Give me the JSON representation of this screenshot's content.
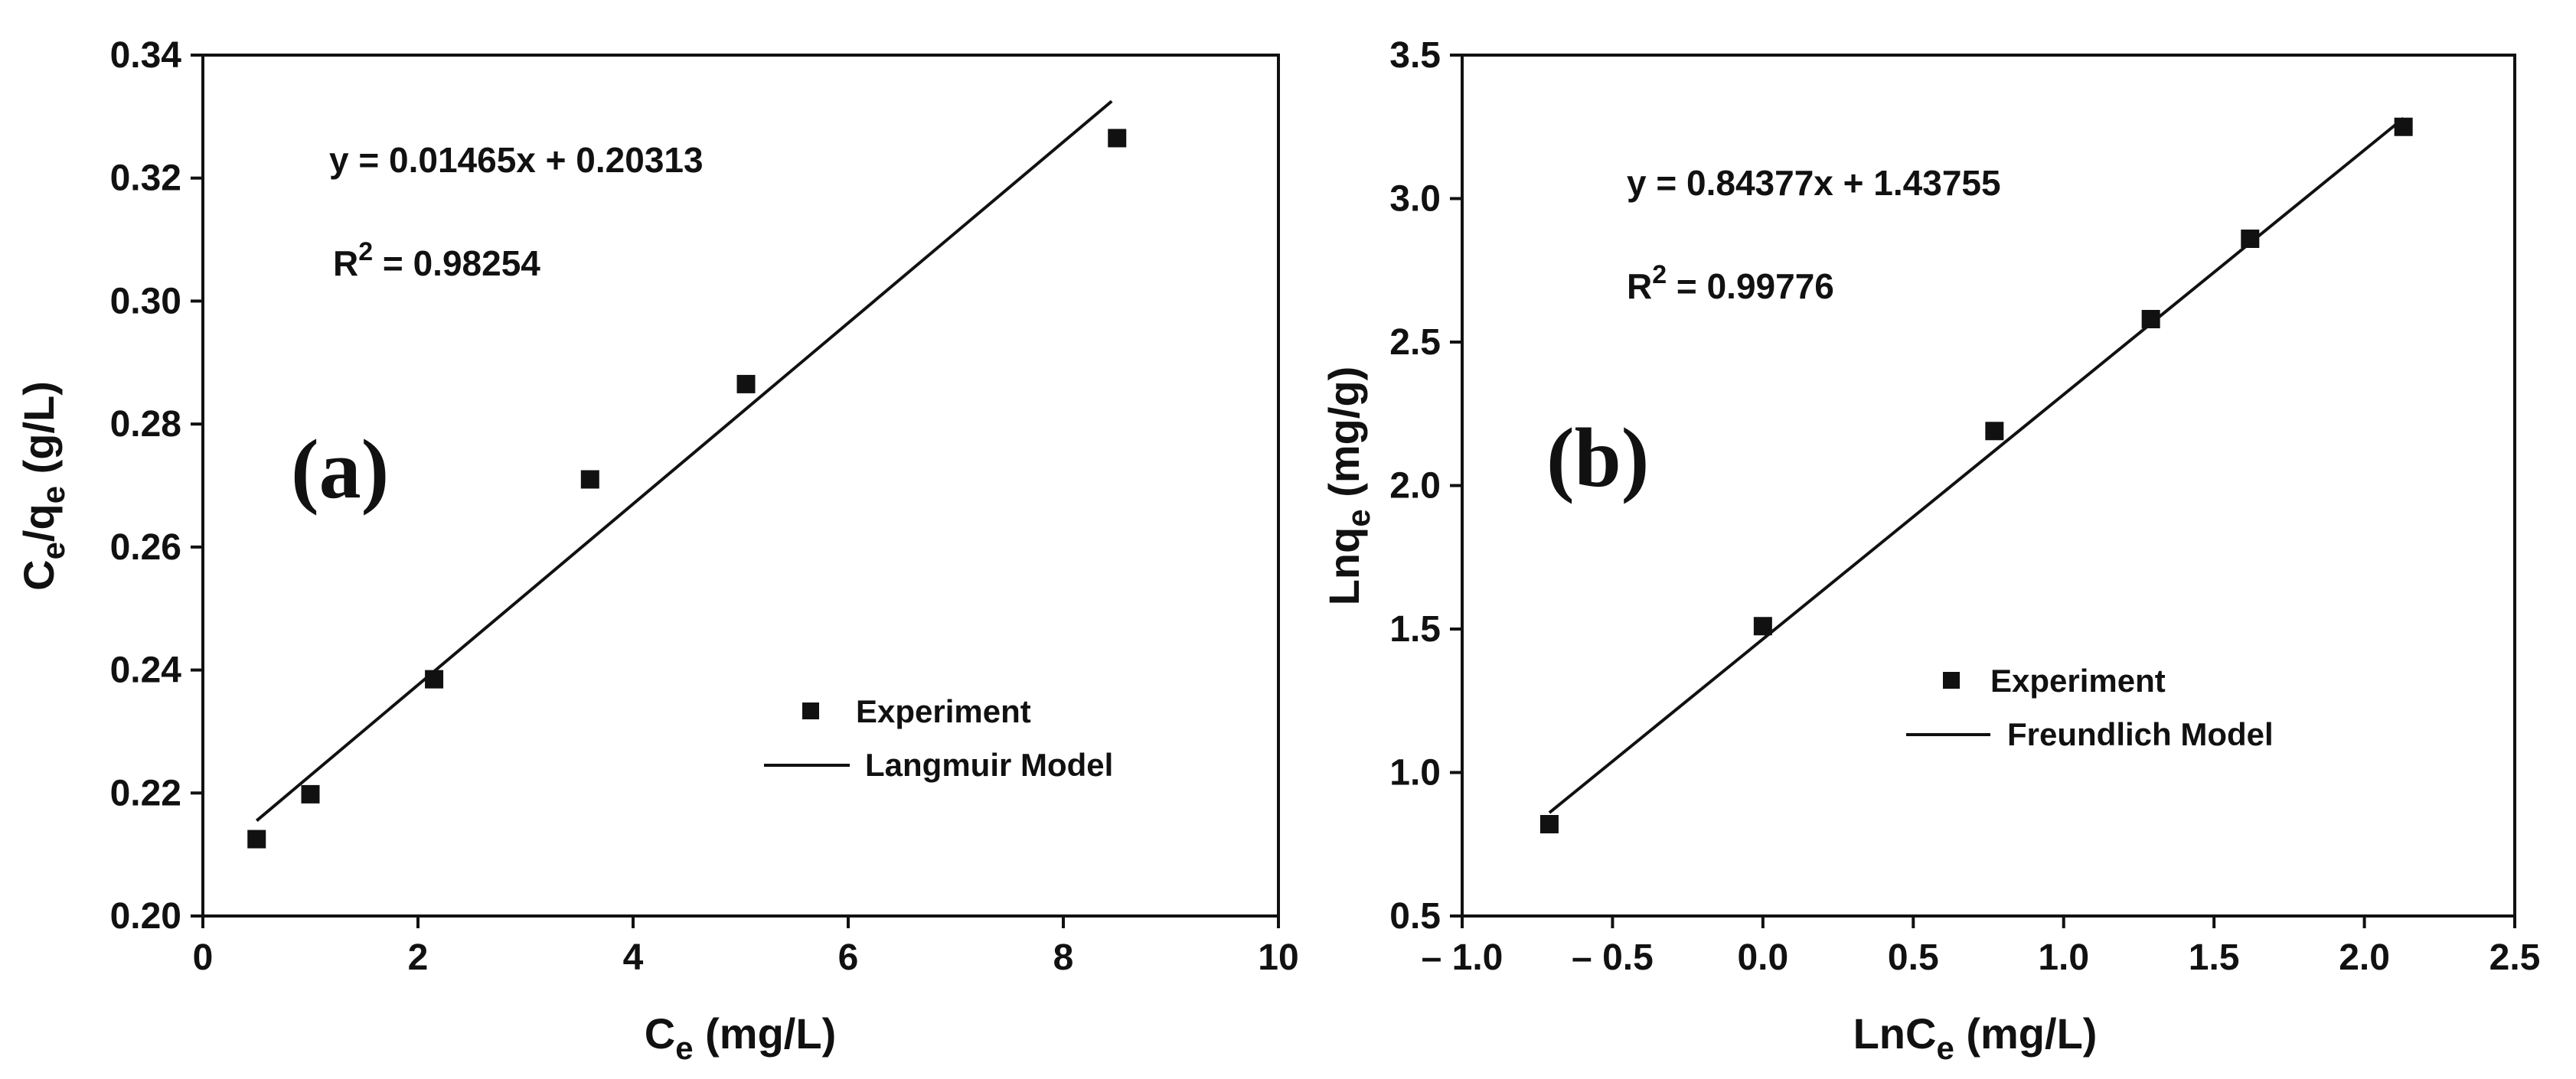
{
  "chart_data": [
    {
      "type": "scatter",
      "panel_label": "(a)",
      "xlabel_main": "C",
      "xlabel_sub": "e",
      "xlabel_units": " (mg/L)",
      "ylabel_parts": [
        {
          "t": "C",
          "sub": false
        },
        {
          "t": "e",
          "sub": true
        },
        {
          "t": "/q",
          "sub": false
        },
        {
          "t": "e",
          "sub": true
        },
        {
          "t": " (g/L)",
          "sub": false
        }
      ],
      "xlim": [
        0,
        10
      ],
      "ylim": [
        0.2,
        0.34
      ],
      "x_ticks": [
        0,
        2,
        4,
        6,
        8,
        10
      ],
      "x_tick_labels": [
        "0",
        "2",
        "4",
        "6",
        "8",
        "10"
      ],
      "y_ticks": [
        0.2,
        0.22,
        0.24,
        0.26,
        0.28,
        0.3,
        0.32,
        0.34
      ],
      "y_tick_labels": [
        "0.20",
        "0.22",
        "0.24",
        "0.26",
        "0.28",
        "0.30",
        "0.32",
        "0.34"
      ],
      "series": [
        {
          "name": "Experiment",
          "kind": "points",
          "x": [
            0.5,
            1.0,
            2.15,
            3.6,
            5.05,
            8.5
          ],
          "y": [
            0.2125,
            0.2198,
            0.2385,
            0.271,
            0.2865,
            0.3265
          ]
        },
        {
          "name": "Langmuir Model",
          "kind": "line",
          "x": [
            0.5,
            8.45
          ],
          "y": [
            0.2155,
            0.3325
          ]
        }
      ],
      "equation": "y = 0.01465x + 0.20313",
      "r2_prefix": "R",
      "r2_exp": "2",
      "r2_value": " = 0.98254",
      "legend": [
        "Experiment",
        "Langmuir Model"
      ]
    },
    {
      "type": "scatter",
      "panel_label": "(b)",
      "xlabel_main": "LnC",
      "xlabel_sub": "e",
      "xlabel_units": " (mg/L)",
      "ylabel_parts": [
        {
          "t": "Lnq",
          "sub": false
        },
        {
          "t": "e",
          "sub": true
        },
        {
          "t": " (mg/g)",
          "sub": false
        }
      ],
      "xlim": [
        -1.0,
        2.5
      ],
      "ylim": [
        0.5,
        3.5
      ],
      "x_ticks": [
        -1.0,
        -0.5,
        0.0,
        0.5,
        1.0,
        1.5,
        2.0,
        2.5
      ],
      "x_tick_labels": [
        "– 1.0",
        "– 0.5",
        "0.0",
        "0.5",
        "1.0",
        "1.5",
        "2.0",
        "2.5"
      ],
      "y_ticks": [
        0.5,
        1.0,
        1.5,
        2.0,
        2.5,
        3.0,
        3.5
      ],
      "y_tick_labels": [
        "0.5",
        "1.0",
        "1.5",
        "2.0",
        "2.5",
        "3.0",
        "3.5"
      ],
      "series": [
        {
          "name": "Experiment",
          "kind": "points",
          "x": [
            -0.71,
            0.0,
            0.77,
            1.29,
            1.62,
            2.13
          ],
          "y": [
            0.82,
            1.51,
            2.19,
            2.58,
            2.86,
            3.25
          ]
        },
        {
          "name": "Freundlich Model",
          "kind": "line",
          "x": [
            -0.71,
            2.13
          ],
          "y": [
            0.86,
            3.28
          ]
        }
      ],
      "equation": "y = 0.84377x + 1.43755",
      "r2_prefix": "R",
      "r2_exp": "2",
      "r2_value": " = 0.99776",
      "legend": [
        "Experiment",
        "Freundlich Model"
      ]
    }
  ]
}
